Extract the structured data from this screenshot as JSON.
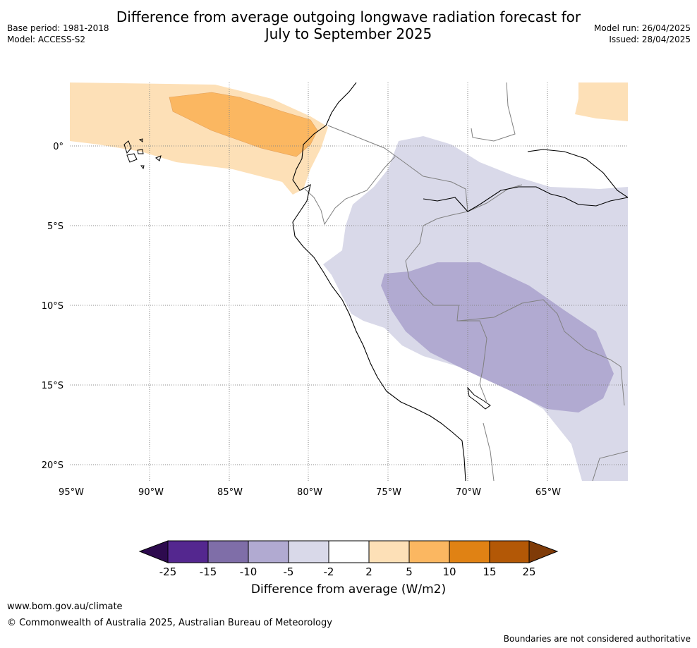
{
  "header": {
    "title_line1": "Difference from average outgoing longwave radiation forecast for",
    "title_line2": "July to September 2025",
    "base_period": "Base period: 1981-2018",
    "model": "Model: ACCESS-S2",
    "model_run": "Model run: 26/04/2025",
    "issued": "Issued: 28/04/2025"
  },
  "map": {
    "lat_labels": [
      "0°",
      "5°S",
      "10°S",
      "15°S",
      "20°S"
    ],
    "lon_labels": [
      "95°W",
      "90°W",
      "85°W",
      "80°W",
      "75°W",
      "70°W",
      "65°W"
    ]
  },
  "colorbar": {
    "title": "Difference from average (W/m2)",
    "tick_labels": [
      "-25",
      "-15",
      "-10",
      "-5",
      "-2",
      "2",
      "5",
      "10",
      "15",
      "25"
    ],
    "colors": {
      "under": "#2d0a4e",
      "bins": [
        "#54278f",
        "#7f6ea8",
        "#b1aad1",
        "#d9d9e9",
        "#ffffff",
        "#fde0b7",
        "#fbb761",
        "#e08214",
        "#b35806"
      ],
      "over": "#7f3b08"
    }
  },
  "footer": {
    "url": "www.bom.gov.au/climate",
    "copyright": "© Commonwealth of Australia 2025, Australian Bureau of Meteorology",
    "disclaimer": "Boundaries are not considered authoritative"
  }
}
